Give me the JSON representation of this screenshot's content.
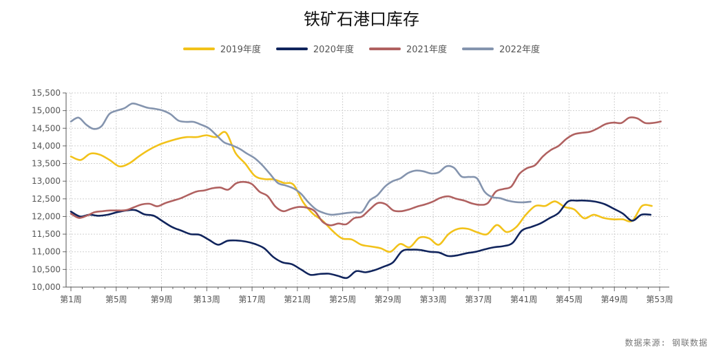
{
  "chart_data": {
    "type": "line",
    "title": "铁矿石港口库存",
    "source": "数据来源: 钢联数据",
    "xlabel": "",
    "ylabel": "",
    "ylim": [
      10000,
      15500
    ],
    "yticks": [
      "10,000",
      "10,500",
      "11,000",
      "11,500",
      "12,000",
      "12,500",
      "13,000",
      "13,500",
      "14,000",
      "14,500",
      "15,000",
      "15,500"
    ],
    "xticks": [
      "第1周",
      "第5周",
      "第9周",
      "第13周",
      "第17周",
      "第21周",
      "第25周",
      "第29周",
      "第33周",
      "第37周",
      "第41周",
      "第45周",
      "第49周",
      "第53周"
    ],
    "grid": true,
    "legend_position": "top-center",
    "series": [
      {
        "name": "2019年度",
        "color": "#f2c21a",
        "values": [
          13700,
          13600,
          13780,
          13750,
          13600,
          13420,
          13500,
          13700,
          13880,
          14020,
          14120,
          14200,
          14250,
          14250,
          14300,
          14250,
          14380,
          13800,
          13500,
          13150,
          13060,
          13050,
          12950,
          12900,
          12400,
          12080,
          11880,
          11600,
          11380,
          11350,
          11200,
          11150,
          11100,
          11000,
          11220,
          11130,
          11400,
          11380,
          11200,
          11500,
          11650,
          11650,
          11550,
          11500,
          11760,
          11560,
          11700,
          12050,
          12300,
          12300,
          12430,
          12270,
          12200,
          11950,
          12050,
          11960,
          11920,
          11920,
          11880,
          12300,
          12300
        ]
      },
      {
        "name": "2020年度",
        "color": "#10245c",
        "values": [
          12140,
          12000,
          12050,
          12020,
          12050,
          12120,
          12170,
          12180,
          12060,
          12020,
          11860,
          11700,
          11600,
          11500,
          11480,
          11340,
          11200,
          11310,
          11320,
          11290,
          11220,
          11100,
          10850,
          10700,
          10650,
          10500,
          10350,
          10370,
          10380,
          10320,
          10260,
          10450,
          10420,
          10480,
          10580,
          10700,
          11020,
          11060,
          11050,
          11000,
          10980,
          10880,
          10900,
          10960,
          11000,
          11070,
          11130,
          11160,
          11250,
          11600,
          11700,
          11800,
          11950,
          12100,
          12420,
          12450,
          12450,
          12420,
          12350,
          12220,
          12080,
          11880,
          12050,
          12050
        ]
      },
      {
        "name": "2021年度",
        "color": "#b06160",
        "values": [
          12080,
          11960,
          12020,
          12120,
          12150,
          12170,
          12170,
          12180,
          12260,
          12340,
          12360,
          12290,
          12380,
          12450,
          12520,
          12620,
          12710,
          12740,
          12800,
          12820,
          12760,
          12940,
          12980,
          12920,
          12700,
          12580,
          12280,
          12150,
          12220,
          12270,
          12250,
          12150,
          11850,
          11750,
          11800,
          11780,
          11950,
          12000,
          12200,
          12380,
          12350,
          12170,
          12150,
          12200,
          12280,
          12340,
          12420,
          12530,
          12570,
          12500,
          12450,
          12370,
          12330,
          12380,
          12700,
          12780,
          12850,
          13200,
          13370,
          13450,
          13700,
          13880,
          14000,
          14200,
          14330,
          14370,
          14400,
          14500,
          14620,
          14660,
          14650,
          14800,
          14780,
          14650,
          14650,
          14690
        ]
      },
      {
        "name": "2022年度",
        "color": "#8494ae",
        "values": [
          14690,
          14800,
          14600,
          14480,
          14560,
          14900,
          15000,
          15070,
          15200,
          15150,
          15080,
          15050,
          15000,
          14900,
          14720,
          14680,
          14680,
          14600,
          14500,
          14300,
          14100,
          14020,
          13920,
          13780,
          13650,
          13450,
          13200,
          12950,
          12880,
          12800,
          12650,
          12400,
          12200,
          12100,
          12050,
          12070,
          12100,
          12120,
          12130,
          12450,
          12600,
          12850,
          13000,
          13080,
          13230,
          13300,
          13280,
          13220,
          13250,
          13420,
          13380,
          13130,
          13120,
          13080,
          12700,
          12550,
          12520,
          12450,
          12410,
          12400,
          12420
        ]
      }
    ]
  }
}
